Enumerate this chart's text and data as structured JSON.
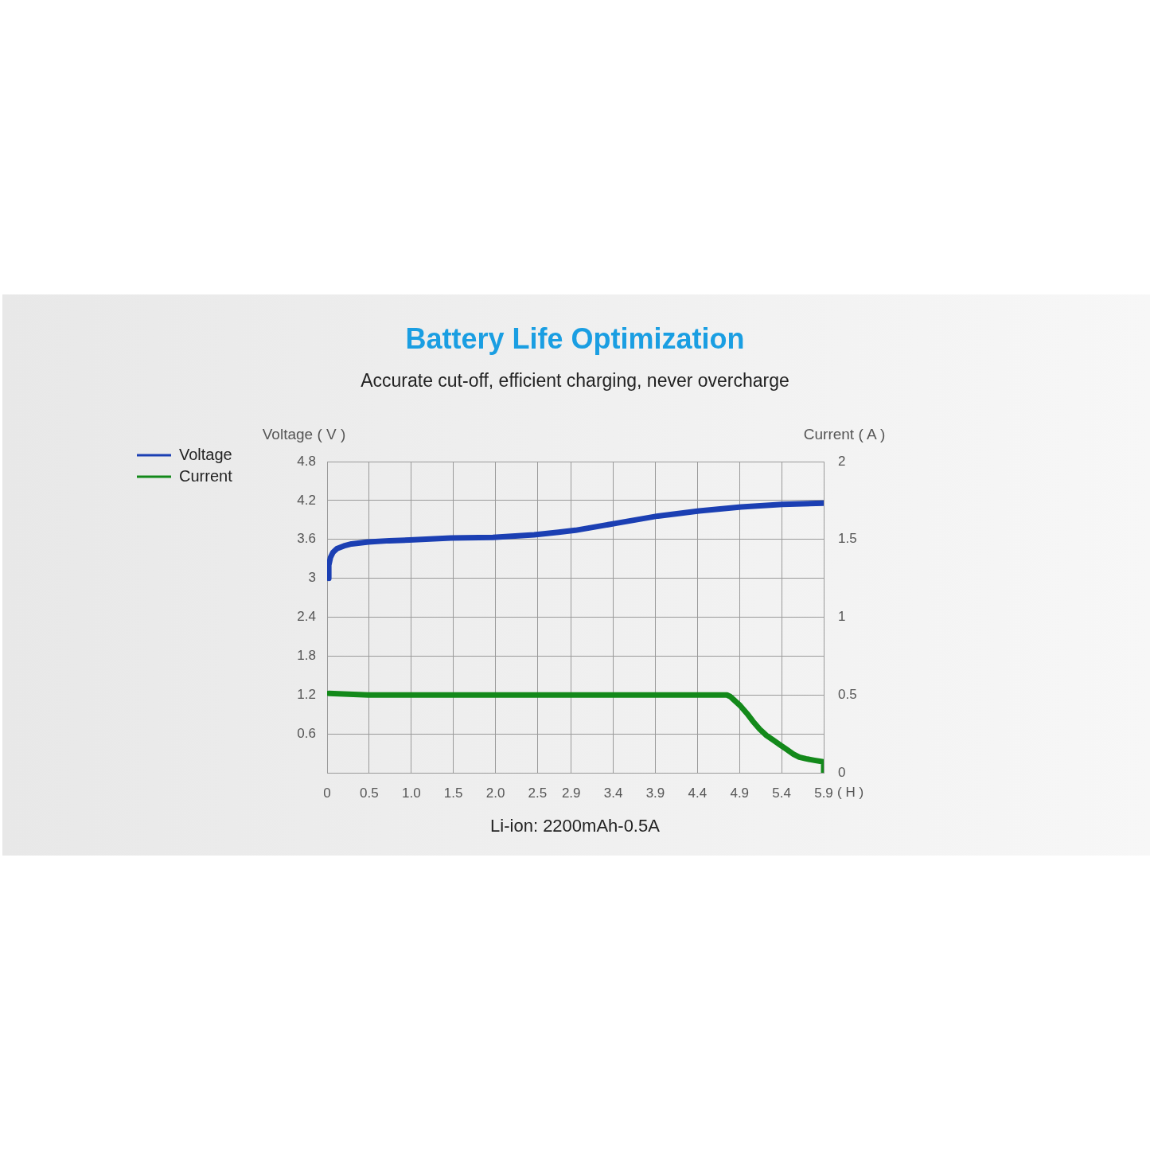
{
  "chart_data": {
    "type": "line",
    "title": "Battery Life Optimization",
    "subtitle": "Accurate cut-off, efficient charging, never overcharge",
    "xlabel": "( H )",
    "ylabel": "Voltage ( V )",
    "y2label": "Current ( A )",
    "annotations": [
      "Li-ion: 2200mAh-0.5A"
    ],
    "xlim": [
      0,
      5.9
    ],
    "xticks": [
      0,
      0.5,
      {
        "value": 1,
        "label": "1.0"
      },
      1.5,
      {
        "value": 2,
        "label": "2.0"
      },
      2.5,
      2.9,
      3.4,
      3.9,
      4.4,
      4.9,
      5.4,
      5.9
    ],
    "ylim": [
      0,
      4.8
    ],
    "yticks": [
      0.6,
      1.2,
      1.8,
      2.4,
      3,
      3.6,
      4.2,
      4.8
    ],
    "y2lim": [
      0,
      2
    ],
    "y2ticks": [
      0,
      0.5,
      1,
      1.5,
      2
    ],
    "grid": true,
    "legend": "top left",
    "line_style": "solid",
    "series": [
      {
        "name": "Voltage",
        "color": "#1b3fb3",
        "x": [
          0.02,
          0.02,
          0.04,
          0.07,
          0.12,
          0.2,
          0.29,
          0.49,
          0.74,
          0.98,
          1.47,
          1.97,
          2.46,
          2.75,
          2.95,
          3.44,
          3.93,
          4.42,
          4.92,
          5.41,
          5.9
        ],
        "values": [
          3.0,
          3.2,
          3.32,
          3.4,
          3.46,
          3.5,
          3.53,
          3.56,
          3.58,
          3.59,
          3.62,
          3.63,
          3.67,
          3.71,
          3.74,
          3.85,
          3.96,
          4.04,
          4.1,
          4.14,
          4.16
        ]
      },
      {
        "name": "Current",
        "color": "#13891a",
        "axis": "y2",
        "x": [
          0.02,
          0.49,
          0.98,
          1.97,
          2.95,
          3.93,
          4.42,
          4.75,
          4.79,
          4.83,
          4.91,
          4.99,
          5.06,
          5.14,
          5.22,
          5.3,
          5.38,
          5.46,
          5.54,
          5.61,
          5.69,
          5.79,
          5.9,
          5.9
        ],
        "values": [
          0.51,
          0.5,
          0.5,
          0.5,
          0.5,
          0.5,
          0.5,
          0.5,
          0.49,
          0.47,
          0.43,
          0.38,
          0.33,
          0.28,
          0.24,
          0.21,
          0.18,
          0.15,
          0.12,
          0.1,
          0.09,
          0.08,
          0.07,
          0
        ]
      }
    ]
  }
}
